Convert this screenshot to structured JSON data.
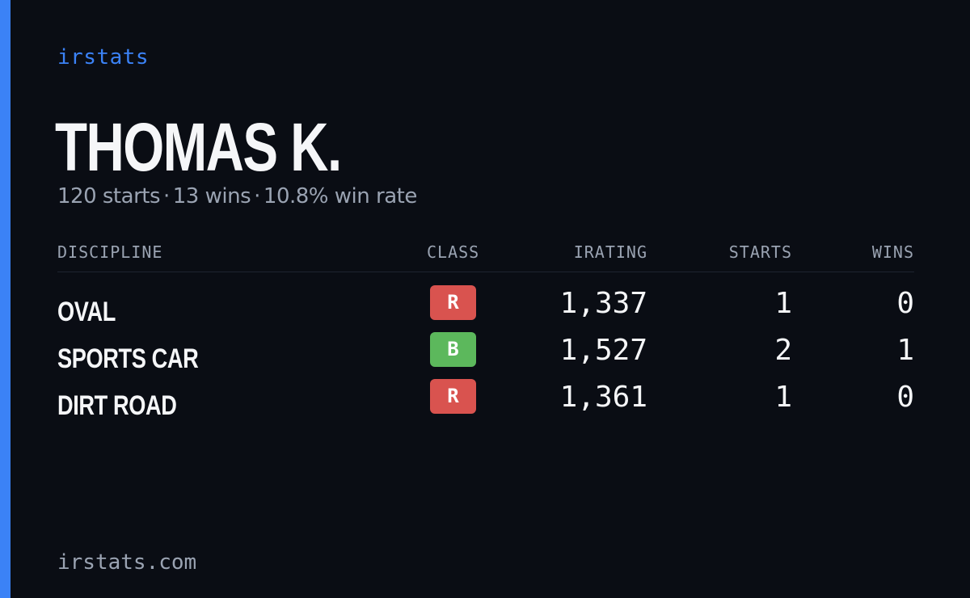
{
  "brand": "irstats",
  "player": {
    "name": "THOMAS K.",
    "starts_text": "120 starts",
    "wins_text": "13 wins",
    "win_rate_text": "10.8% win rate",
    "separator": "·"
  },
  "table": {
    "headers": {
      "discipline": "DISCIPLINE",
      "class": "CLASS",
      "irating": "IRATING",
      "starts": "STARTS",
      "wins": "WINS"
    },
    "rows": [
      {
        "discipline": "OVAL",
        "class": "R",
        "class_color": "#d9534f",
        "irating": "1,337",
        "starts": "1",
        "wins": "0"
      },
      {
        "discipline": "SPORTS CAR",
        "class": "B",
        "class_color": "#5cb85c",
        "irating": "1,527",
        "starts": "2",
        "wins": "1"
      },
      {
        "discipline": "DIRT ROAD",
        "class": "R",
        "class_color": "#d9534f",
        "irating": "1,361",
        "starts": "1",
        "wins": "0"
      }
    ]
  },
  "footer": "irstats.com",
  "colors": {
    "accent": "#3b82f6",
    "background": "#0a0d14",
    "muted_text": "#9aa3b2"
  }
}
